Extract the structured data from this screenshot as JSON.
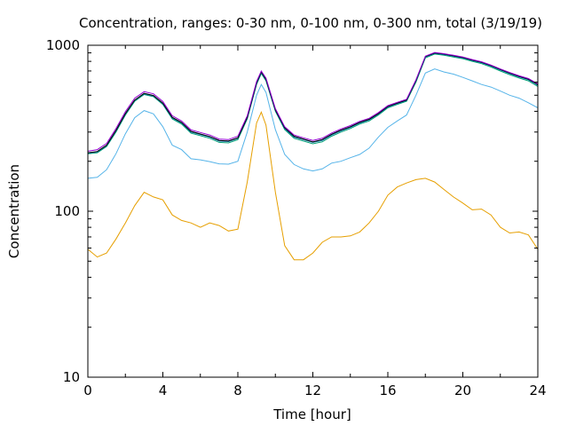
{
  "chart_data": {
    "type": "line",
    "title": "Concentration, ranges: 0-30 nm, 0-100 nm, 0-300 nm, total (3/19/19)",
    "xlabel": "Time [hour]",
    "ylabel": "Concentration",
    "xlim": [
      0,
      24
    ],
    "ylim": [
      10,
      1000
    ],
    "yscale": "log",
    "grid": false,
    "legend": "none",
    "x_ticks": [
      0,
      4,
      8,
      12,
      16,
      20,
      24
    ],
    "x_tick_labels": [
      "0",
      "4",
      "8",
      "12",
      "16",
      "20",
      "24"
    ],
    "y_ticks": [
      10,
      100,
      1000
    ],
    "y_tick_labels": [
      "10",
      "100",
      "1000"
    ],
    "x": [
      0,
      0.5,
      1,
      1.5,
      2,
      2.5,
      3,
      3.5,
      4,
      4.5,
      5,
      5.5,
      6,
      6.5,
      7,
      7.5,
      8,
      8.5,
      9,
      9.25,
      9.5,
      10,
      10.5,
      11,
      11.5,
      12,
      12.5,
      13,
      13.5,
      14,
      14.5,
      15,
      15.5,
      16,
      16.5,
      17,
      17.5,
      18,
      18.5,
      19,
      19.5,
      20,
      20.5,
      21,
      21.5,
      22,
      22.5,
      23,
      23.5,
      24
    ],
    "series": [
      {
        "color": "#e69f00",
        "values": [
          59,
          53,
          56,
          68,
          85,
          108,
          130,
          122,
          117,
          95,
          88,
          85,
          80,
          85,
          82,
          76,
          78,
          150,
          340,
          395,
          330,
          130,
          62,
          51,
          51,
          56,
          65,
          70,
          70,
          71,
          75,
          85,
          100,
          125,
          140,
          148,
          155,
          158,
          150,
          135,
          122,
          112,
          102,
          103,
          95,
          80,
          74,
          75,
          72,
          59
        ]
      },
      {
        "color": "#56b4e9",
        "values": [
          158,
          160,
          178,
          222,
          293,
          366,
          404,
          386,
          323,
          250,
          235,
          207,
          204,
          199,
          193,
          192,
          200,
          300,
          500,
          580,
          520,
          310,
          220,
          191,
          180,
          175,
          180,
          195,
          200,
          210,
          220,
          240,
          280,
          320,
          350,
          380,
          500,
          680,
          720,
          690,
          670,
          640,
          610,
          580,
          560,
          530,
          500,
          480,
          450,
          420
        ]
      },
      {
        "color": "#009e73",
        "values": [
          222,
          225,
          245,
          300,
          380,
          460,
          505,
          490,
          440,
          360,
          335,
          295,
          285,
          275,
          260,
          258,
          270,
          360,
          580,
          675,
          610,
          400,
          310,
          275,
          265,
          255,
          262,
          283,
          300,
          315,
          335,
          350,
          380,
          420,
          440,
          460,
          600,
          840,
          885,
          870,
          850,
          830,
          800,
          775,
          740,
          700,
          665,
          635,
          610,
          565
        ]
      },
      {
        "color": "#0072b2",
        "values": [
          224,
          228,
          248,
          305,
          385,
          465,
          510,
          495,
          445,
          365,
          340,
          300,
          290,
          280,
          265,
          263,
          275,
          365,
          590,
          685,
          620,
          405,
          315,
          280,
          270,
          260,
          267,
          288,
          305,
          320,
          340,
          355,
          385,
          425,
          445,
          465,
          610,
          850,
          895,
          880,
          860,
          840,
          810,
          785,
          750,
          710,
          675,
          645,
          620,
          575
        ]
      },
      {
        "color": "#000000",
        "values": [
          225,
          229,
          250,
          307,
          388,
          468,
          513,
          498,
          448,
          368,
          343,
          303,
          292,
          282,
          267,
          265,
          277,
          368,
          595,
          690,
          625,
          408,
          318,
          283,
          272,
          262,
          270,
          291,
          308,
          323,
          343,
          358,
          388,
          428,
          448,
          468,
          615,
          855,
          900,
          885,
          865,
          845,
          815,
          790,
          755,
          715,
          680,
          650,
          625,
          580
        ]
      },
      {
        "color": "#9400d3",
        "values": [
          230,
          235,
          256,
          315,
          398,
          480,
          525,
          510,
          458,
          376,
          350,
          309,
          298,
          288,
          272,
          270,
          283,
          376,
          605,
          700,
          634,
          415,
          323,
          288,
          277,
          267,
          275,
          296,
          313,
          328,
          348,
          363,
          393,
          433,
          453,
          473,
          620,
          860,
          905,
          890,
          870,
          850,
          820,
          795,
          760,
          720,
          685,
          655,
          630,
          585
        ]
      }
    ]
  }
}
